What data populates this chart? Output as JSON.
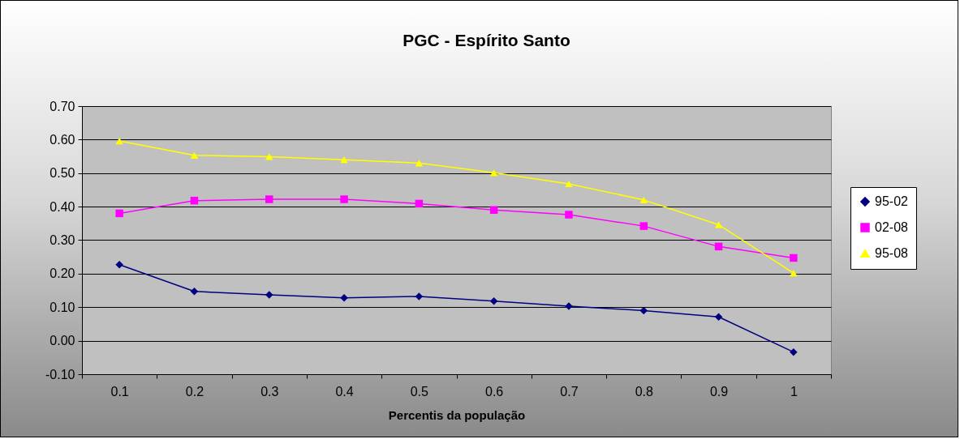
{
  "chart_data": {
    "type": "line",
    "title": "PGC - Espírito Santo",
    "xlabel": "Percentis da população",
    "categories": [
      "0.1",
      "0.2",
      "0.3",
      "0.4",
      "0.5",
      "0.6",
      "0.7",
      "0.8",
      "0.9",
      "1"
    ],
    "series": [
      {
        "name": "95-02",
        "color": "#000080",
        "marker": "diamond",
        "values": [
          0.227,
          0.147,
          0.137,
          0.128,
          0.132,
          0.118,
          0.103,
          0.09,
          0.071,
          -0.034
        ]
      },
      {
        "name": "02-08",
        "color": "#ff00ff",
        "marker": "square",
        "values": [
          0.38,
          0.418,
          0.422,
          0.422,
          0.409,
          0.39,
          0.376,
          0.342,
          0.281,
          0.247
        ]
      },
      {
        "name": "95-08",
        "color": "#ffff00",
        "marker": "triangle",
        "values": [
          0.596,
          0.553,
          0.549,
          0.54,
          0.53,
          0.501,
          0.468,
          0.42,
          0.346,
          0.202
        ]
      }
    ],
    "ylim": [
      -0.1,
      0.7
    ],
    "yticks": [
      {
        "value": -0.1,
        "label": "-0.10"
      },
      {
        "value": 0,
        "label": "0.00"
      },
      {
        "value": 0.1,
        "label": "0.10"
      },
      {
        "value": 0.2,
        "label": "0.20"
      },
      {
        "value": 0.3,
        "label": "0.30"
      },
      {
        "value": 0.4,
        "label": "0.40"
      },
      {
        "value": 0.5,
        "label": "0.50"
      },
      {
        "value": 0.6,
        "label": "0.60"
      },
      {
        "value": 0.7,
        "label": "0.70"
      }
    ],
    "grid": "y",
    "legend": "right"
  }
}
